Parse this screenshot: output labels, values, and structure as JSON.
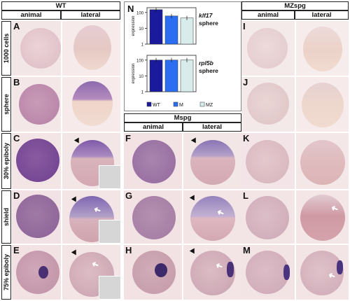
{
  "headers": {
    "wt": "WT",
    "mspg": "MZspg",
    "mid": "Mspg",
    "animal": "animal",
    "lateral": "lateral"
  },
  "rows": [
    "1000 cells",
    "sphere",
    "30% epiboly",
    "shield",
    "75% epiboly"
  ],
  "panels": {
    "A": "A",
    "B": "B",
    "C": "C",
    "D": "D",
    "E": "E",
    "F": "F",
    "G": "G",
    "H": "H",
    "I": "I",
    "J": "J",
    "K": "K",
    "L": "L",
    "M": "M",
    "N": "N"
  },
  "chart_data": [
    {
      "type": "bar",
      "title": "klf17 sphere",
      "ylabel": "expression",
      "yscale": "log",
      "ylim": [
        1,
        200
      ],
      "categories": [
        "WT",
        "M",
        "MZ"
      ],
      "values": [
        150,
        60,
        45
      ],
      "colors": [
        "#1a1a9c",
        "#2b6ef2",
        "#d8ecec"
      ],
      "ticks": [
        "1",
        "10",
        "100"
      ]
    },
    {
      "type": "bar",
      "title": "rpl5b sphere",
      "ylabel": "expression",
      "yscale": "log",
      "ylim": [
        1,
        200
      ],
      "categories": [
        "WT",
        "M",
        "MZ"
      ],
      "values": [
        100,
        100,
        100
      ],
      "colors": [
        "#1a1a9c",
        "#2b6ef2",
        "#d8ecec"
      ],
      "ticks": [
        "1",
        "10",
        "100"
      ]
    }
  ],
  "legend": [
    "WT",
    "M",
    "MZ"
  ]
}
